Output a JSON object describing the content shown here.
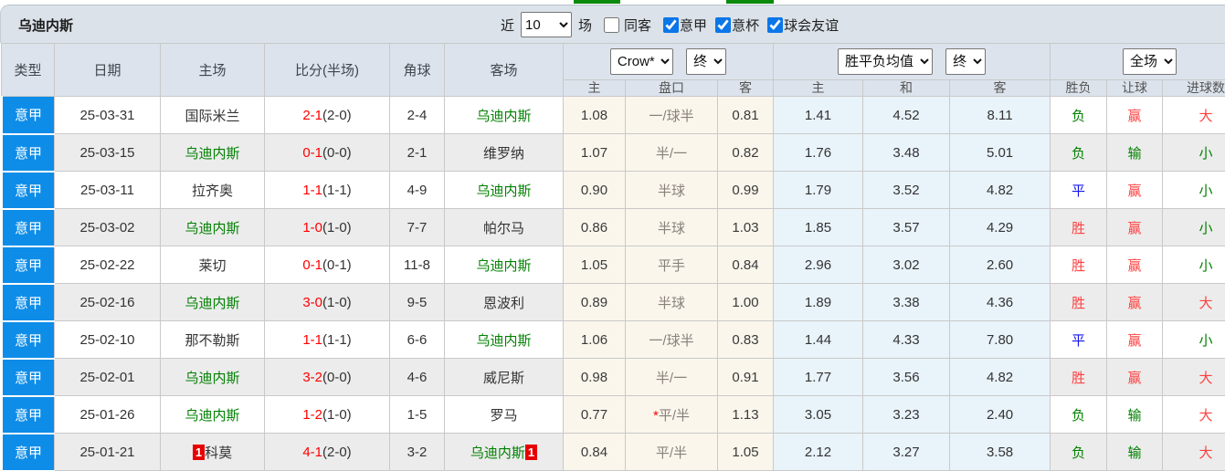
{
  "title": "乌迪内斯",
  "filters": {
    "near_label": "近",
    "near_value": "10",
    "matches_label": "场",
    "same_venue_label": "同客",
    "same_venue_checked": false,
    "league_options": [
      {
        "label": "意甲",
        "checked": true
      },
      {
        "label": "意杯",
        "checked": true
      },
      {
        "label": "球会友谊",
        "checked": true
      }
    ]
  },
  "table": {
    "headers": {
      "type": "类型",
      "date": "日期",
      "home": "主场",
      "score": "比分(半场)",
      "corners": "角球",
      "away": "客场",
      "odds_sub": [
        "主",
        "盘口",
        "客"
      ],
      "mean_sub": [
        "主",
        "和",
        "客"
      ],
      "result_sub": [
        "胜负",
        "让球",
        "进球数"
      ]
    },
    "selects": {
      "bookmaker": "Crow*",
      "bookmaker_time": "终",
      "mean": "胜平负均值",
      "mean_time": "终",
      "scope": "全场"
    },
    "rows": [
      {
        "league": "意甲",
        "date": "25-03-31",
        "home": "国际米兰",
        "home_highlight": false,
        "home_badge": "",
        "score": "2-1",
        "half_score": "(2-0)",
        "corners": "2-4",
        "away": "乌迪内斯",
        "away_highlight": true,
        "away_badge": "",
        "odds_home": "1.08",
        "handicap": "一/球半",
        "handicap_star": false,
        "odds_away": "0.81",
        "mean_home": "1.41",
        "mean_draw": "4.52",
        "mean_away": "8.11",
        "outcome": "负",
        "outcome_color": "green",
        "handicap_result": "赢",
        "handicap_result_color": "red",
        "goals_result": "大",
        "goals_result_color": "red"
      },
      {
        "league": "意甲",
        "date": "25-03-15",
        "home": "乌迪内斯",
        "home_highlight": true,
        "home_badge": "",
        "score": "0-1",
        "half_score": "(0-0)",
        "corners": "2-1",
        "away": "维罗纳",
        "away_highlight": false,
        "away_badge": "",
        "odds_home": "1.07",
        "handicap": "半/一",
        "handicap_star": false,
        "odds_away": "0.82",
        "mean_home": "1.76",
        "mean_draw": "3.48",
        "mean_away": "5.01",
        "outcome": "负",
        "outcome_color": "green",
        "handicap_result": "输",
        "handicap_result_color": "green",
        "goals_result": "小",
        "goals_result_color": "green"
      },
      {
        "league": "意甲",
        "date": "25-03-11",
        "home": "拉齐奥",
        "home_highlight": false,
        "home_badge": "",
        "score": "1-1",
        "half_score": "(1-1)",
        "corners": "4-9",
        "away": "乌迪内斯",
        "away_highlight": true,
        "away_badge": "",
        "odds_home": "0.90",
        "handicap": "半球",
        "handicap_star": false,
        "odds_away": "0.99",
        "mean_home": "1.79",
        "mean_draw": "3.52",
        "mean_away": "4.82",
        "outcome": "平",
        "outcome_color": "blue",
        "handicap_result": "赢",
        "handicap_result_color": "red",
        "goals_result": "小",
        "goals_result_color": "green"
      },
      {
        "league": "意甲",
        "date": "25-03-02",
        "home": "乌迪内斯",
        "home_highlight": true,
        "home_badge": "",
        "score": "1-0",
        "half_score": "(1-0)",
        "corners": "7-7",
        "away": "帕尔马",
        "away_highlight": false,
        "away_badge": "",
        "odds_home": "0.86",
        "handicap": "半球",
        "handicap_star": false,
        "odds_away": "1.03",
        "mean_home": "1.85",
        "mean_draw": "3.57",
        "mean_away": "4.29",
        "outcome": "胜",
        "outcome_color": "red",
        "handicap_result": "赢",
        "handicap_result_color": "red",
        "goals_result": "小",
        "goals_result_color": "green"
      },
      {
        "league": "意甲",
        "date": "25-02-22",
        "home": "莱切",
        "home_highlight": false,
        "home_badge": "",
        "score": "0-1",
        "half_score": "(0-1)",
        "corners": "11-8",
        "away": "乌迪内斯",
        "away_highlight": true,
        "away_badge": "",
        "odds_home": "1.05",
        "handicap": "平手",
        "handicap_star": false,
        "odds_away": "0.84",
        "mean_home": "2.96",
        "mean_draw": "3.02",
        "mean_away": "2.60",
        "outcome": "胜",
        "outcome_color": "red",
        "handicap_result": "赢",
        "handicap_result_color": "red",
        "goals_result": "小",
        "goals_result_color": "green"
      },
      {
        "league": "意甲",
        "date": "25-02-16",
        "home": "乌迪内斯",
        "home_highlight": true,
        "home_badge": "",
        "score": "3-0",
        "half_score": "(1-0)",
        "corners": "9-5",
        "away": "恩波利",
        "away_highlight": false,
        "away_badge": "",
        "odds_home": "0.89",
        "handicap": "半球",
        "handicap_star": false,
        "odds_away": "1.00",
        "mean_home": "1.89",
        "mean_draw": "3.38",
        "mean_away": "4.36",
        "outcome": "胜",
        "outcome_color": "red",
        "handicap_result": "赢",
        "handicap_result_color": "red",
        "goals_result": "大",
        "goals_result_color": "red"
      },
      {
        "league": "意甲",
        "date": "25-02-10",
        "home": "那不勒斯",
        "home_highlight": false,
        "home_badge": "",
        "score": "1-1",
        "half_score": "(1-1)",
        "corners": "6-6",
        "away": "乌迪内斯",
        "away_highlight": true,
        "away_badge": "",
        "odds_home": "1.06",
        "handicap": "一/球半",
        "handicap_star": false,
        "odds_away": "0.83",
        "mean_home": "1.44",
        "mean_draw": "4.33",
        "mean_away": "7.80",
        "outcome": "平",
        "outcome_color": "blue",
        "handicap_result": "赢",
        "handicap_result_color": "red",
        "goals_result": "小",
        "goals_result_color": "green"
      },
      {
        "league": "意甲",
        "date": "25-02-01",
        "home": "乌迪内斯",
        "home_highlight": true,
        "home_badge": "",
        "score": "3-2",
        "half_score": "(0-0)",
        "corners": "4-6",
        "away": "威尼斯",
        "away_highlight": false,
        "away_badge": "",
        "odds_home": "0.98",
        "handicap": "半/一",
        "handicap_star": false,
        "odds_away": "0.91",
        "mean_home": "1.77",
        "mean_draw": "3.56",
        "mean_away": "4.82",
        "outcome": "胜",
        "outcome_color": "red",
        "handicap_result": "赢",
        "handicap_result_color": "red",
        "goals_result": "大",
        "goals_result_color": "red"
      },
      {
        "league": "意甲",
        "date": "25-01-26",
        "home": "乌迪内斯",
        "home_highlight": true,
        "home_badge": "",
        "score": "1-2",
        "half_score": "(1-0)",
        "corners": "1-5",
        "away": "罗马",
        "away_highlight": false,
        "away_badge": "",
        "odds_home": "0.77",
        "handicap": "平/半",
        "handicap_star": true,
        "odds_away": "1.13",
        "mean_home": "3.05",
        "mean_draw": "3.23",
        "mean_away": "2.40",
        "outcome": "负",
        "outcome_color": "green",
        "handicap_result": "输",
        "handicap_result_color": "green",
        "goals_result": "大",
        "goals_result_color": "red"
      },
      {
        "league": "意甲",
        "date": "25-01-21",
        "home": "科莫",
        "home_highlight": false,
        "home_badge": "1",
        "score": "4-1",
        "half_score": "(2-0)",
        "corners": "3-2",
        "away": "乌迪内斯",
        "away_highlight": true,
        "away_badge": "1",
        "odds_home": "0.84",
        "handicap": "平/半",
        "handicap_star": false,
        "odds_away": "1.05",
        "mean_home": "2.12",
        "mean_draw": "3.27",
        "mean_away": "3.58",
        "outcome": "负",
        "outcome_color": "green",
        "handicap_result": "输",
        "handicap_result_color": "green",
        "goals_result": "大",
        "goals_result_color": "red"
      }
    ]
  }
}
